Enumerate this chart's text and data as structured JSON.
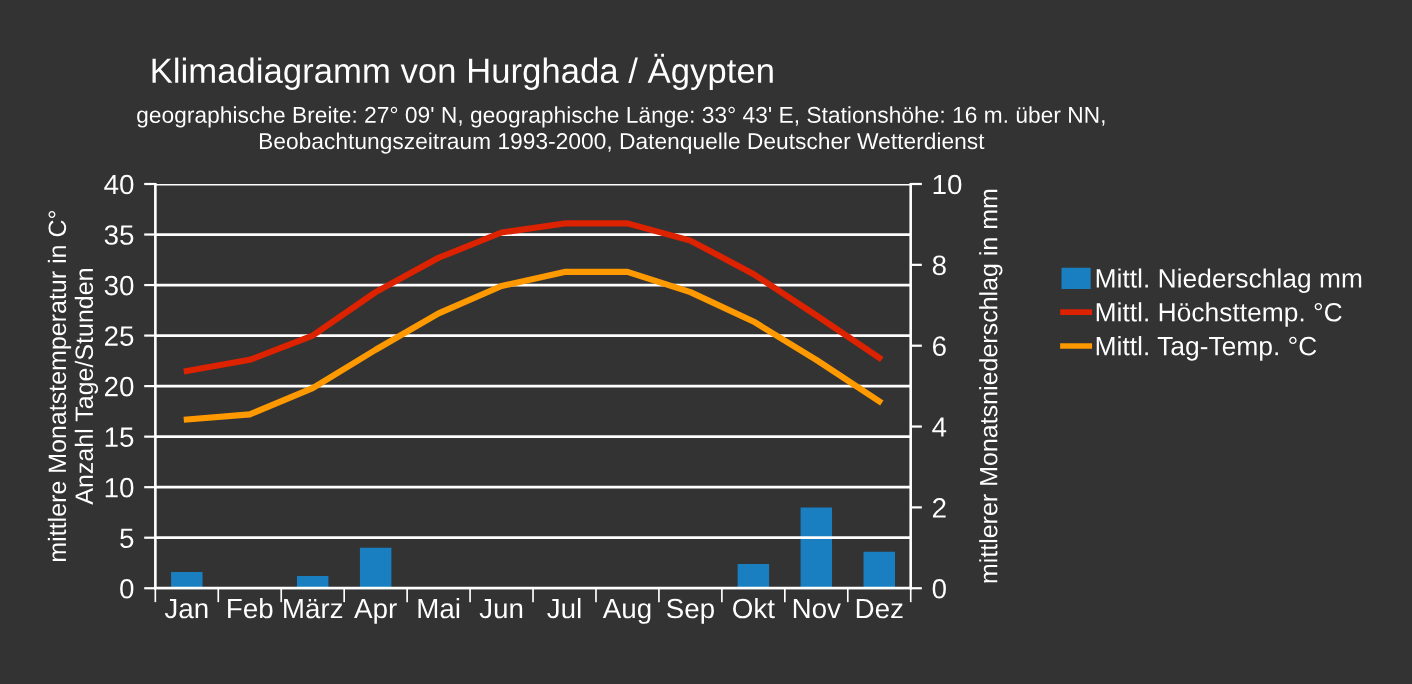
{
  "chart_data": {
    "type": "line",
    "title": "Klimadiagramm von Hurghada / Ägypten",
    "subtitle": "geographische Breite: 27° 09' N, geographische Länge: 33° 43' E, Stationshöhe: 16 m. über NN,\nBeobachtungszeitraum 1993-2000, Datenquelle Deutscher Wetterdienst",
    "ylabel": "mittlere Monatstemperatur in C°\nAnzahl Tage/Stunden",
    "y2label": "mittlerer Monatsniederschlag in mm",
    "categories": [
      "Jan",
      "Feb",
      "März",
      "Apr",
      "Mai",
      "Jun",
      "Jul",
      "Aug",
      "Sep",
      "Okt",
      "Nov",
      "Dez"
    ],
    "series": [
      {
        "name": "Mittl. Niederschlag mm",
        "type": "bar",
        "axis": "y2",
        "color": "#1a7fc0",
        "values": [
          0.4,
          0,
          0.3,
          1.0,
          0,
          0,
          0,
          0,
          0,
          0.6,
          2.0,
          0.9
        ]
      },
      {
        "name": "Mittl. Höchsttemp. °C",
        "color": "#dd2200",
        "values": [
          21.5,
          22.6,
          25,
          29.3,
          32.7,
          35.2,
          36.1,
          36.1,
          34.4,
          31.1,
          27,
          22.8
        ]
      },
      {
        "name": "Mittl. Tag-Temp. °C",
        "color": "#ff9900",
        "values": [
          16.7,
          17.2,
          19.8,
          23.6,
          27.2,
          29.9,
          31.3,
          31.3,
          29.3,
          26.4,
          22.6,
          18.5
        ]
      }
    ],
    "ylim": [
      0,
      40
    ],
    "yticks": [
      0,
      5,
      10,
      15,
      20,
      25,
      30,
      35,
      40
    ],
    "y2lim": [
      0,
      10
    ],
    "y2ticks": [
      0,
      2,
      4,
      6,
      8,
      10
    ],
    "grid": "y",
    "legend": "right",
    "marker": "none",
    "line_style": "solid"
  }
}
